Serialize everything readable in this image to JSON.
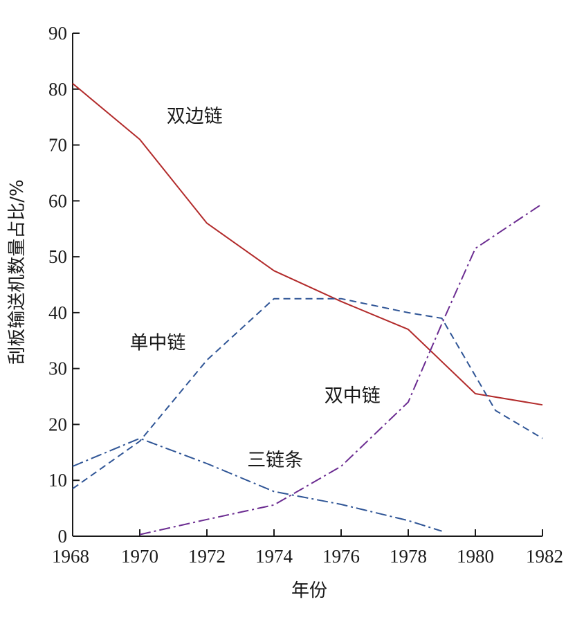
{
  "chart_data": {
    "type": "line",
    "title": "",
    "xlabel": "年份",
    "ylabel": "刮板输送机数量占比/%",
    "xlim": [
      1968,
      1982
    ],
    "ylim": [
      0,
      90
    ],
    "x_ticks": [
      1968,
      1970,
      1972,
      1974,
      1976,
      1978,
      1980,
      1982
    ],
    "y_ticks": [
      0,
      10,
      20,
      30,
      40,
      50,
      60,
      70,
      80,
      90
    ],
    "x_tick_labels": [
      "1968",
      "1970",
      "1972",
      "1974",
      "1976",
      "1978",
      "1980",
      "1982"
    ],
    "y_tick_labels": [
      "0",
      "10",
      "20",
      "30",
      "40",
      "50",
      "60",
      "70",
      "80",
      "90"
    ],
    "grid": false,
    "legend": "none",
    "series": [
      {
        "name": "双边链",
        "color": "#b22a2a",
        "style": "solid",
        "x": [
          1968,
          1970,
          1972,
          1974,
          1976,
          1978,
          1980,
          1982
        ],
        "y": [
          81,
          71,
          56,
          47.5,
          42,
          37,
          25.5,
          23.5
        ],
        "label_at": [
          1970.8,
          74
        ]
      },
      {
        "name": "单中链",
        "color": "#2f5596",
        "style": "dashed",
        "x": [
          1968,
          1970,
          1972,
          1974,
          1976,
          1978,
          1979,
          1980.6,
          1982
        ],
        "y": [
          8.5,
          17,
          31.5,
          42.5,
          42.5,
          40,
          39,
          22.5,
          17.5
        ],
        "label_at": [
          1969.7,
          33.5
        ]
      },
      {
        "name": "双中链",
        "color": "#6b2c91",
        "style": "dashdot",
        "x": [
          1970,
          1972,
          1974,
          1976,
          1978,
          1979,
          1980,
          1982
        ],
        "y": [
          0.3,
          3,
          5.6,
          12.5,
          24,
          38,
          51.5,
          59.5
        ],
        "label_at": [
          1975.5,
          24
        ]
      },
      {
        "name": "三链条",
        "color": "#2f5596",
        "style": "dashdot",
        "x": [
          1968,
          1970,
          1972,
          1974,
          1976,
          1978,
          1979
        ],
        "y": [
          12.5,
          17.5,
          13,
          8,
          5.7,
          2.8,
          0.9
        ],
        "label_at": [
          1973.2,
          12.5
        ]
      }
    ]
  }
}
